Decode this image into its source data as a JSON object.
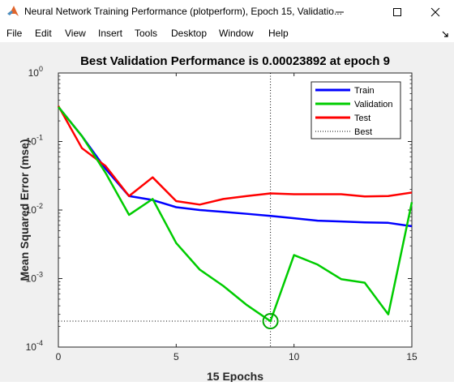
{
  "window": {
    "title": "Neural Network Training Performance (plotperform), Epoch 15, Validatio..."
  },
  "menu": [
    "File",
    "Edit",
    "View",
    "Insert",
    "Tools",
    "Desktop",
    "Window",
    "Help"
  ],
  "chart_data": {
    "type": "line",
    "title": "Best Validation Performance is 0.00023892 at epoch 9",
    "xlabel": "15 Epochs",
    "ylabel": "Mean Squared Error  (mse)",
    "xlim": [
      0,
      15
    ],
    "ylim": [
      0.0001,
      1
    ],
    "yscale": "log",
    "xticks": [
      "0",
      "5",
      "10",
      "15"
    ],
    "grid": false,
    "legend_position": "top-right",
    "x": [
      0,
      1,
      2,
      3,
      4,
      5,
      6,
      7,
      8,
      9,
      10,
      11,
      12,
      13,
      14,
      15
    ],
    "series": [
      {
        "name": "Train",
        "color": "#0000ff",
        "values": [
          0.32,
          0.12,
          0.04,
          0.016,
          0.014,
          0.011,
          0.01,
          0.0094,
          0.0088,
          0.0082,
          0.0076,
          0.007,
          0.0068,
          0.0066,
          0.0065,
          0.0058
        ]
      },
      {
        "name": "Validation",
        "color": "#00cc00",
        "values": [
          0.32,
          0.12,
          0.035,
          0.0085,
          0.0145,
          0.0033,
          0.00135,
          0.00078,
          0.00041,
          0.00023892,
          0.0022,
          0.0016,
          0.00098,
          0.00087,
          0.0003,
          0.013
        ]
      },
      {
        "name": "Test",
        "color": "#ff0000",
        "values": [
          0.33,
          0.08,
          0.044,
          0.016,
          0.03,
          0.0135,
          0.012,
          0.0145,
          0.016,
          0.0175,
          0.017,
          0.017,
          0.017,
          0.0158,
          0.016,
          0.018
        ]
      }
    ],
    "best": {
      "name": "Best",
      "epoch": 9,
      "value": 0.00023892,
      "color": "#000000",
      "marker_color": "#00aa00"
    }
  }
}
